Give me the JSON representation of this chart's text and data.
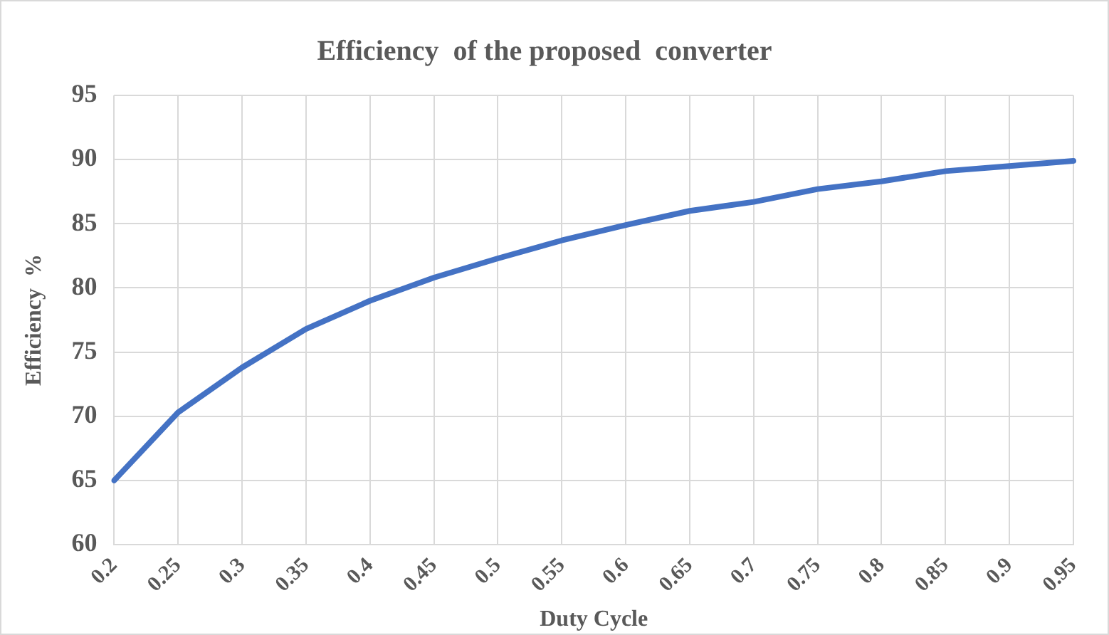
{
  "chart_data": {
    "type": "line",
    "title": "Efficiency  of the proposed  converter",
    "xlabel": "Duty Cycle",
    "ylabel": "Efficiency  %",
    "categories": [
      "0.2",
      "0.25",
      "0.3",
      "0.35",
      "0.4",
      "0.45",
      "0.5",
      "0.55",
      "0.6",
      "0.65",
      "0.7",
      "0.75",
      "0.8",
      "0.85",
      "0.9",
      "0.95"
    ],
    "series": [
      {
        "color": "#4472c4",
        "values": [
          65.0,
          70.3,
          73.8,
          76.8,
          79.0,
          80.8,
          82.3,
          83.7,
          84.9,
          86.0,
          86.7,
          87.7,
          88.3,
          89.1,
          89.5,
          89.9
        ]
      }
    ],
    "ylim": [
      60,
      95
    ],
    "yticks": [
      60,
      65,
      70,
      75,
      80,
      85,
      90,
      95
    ],
    "grid": true,
    "legend": false,
    "marker": "none",
    "line_style": "solid"
  }
}
